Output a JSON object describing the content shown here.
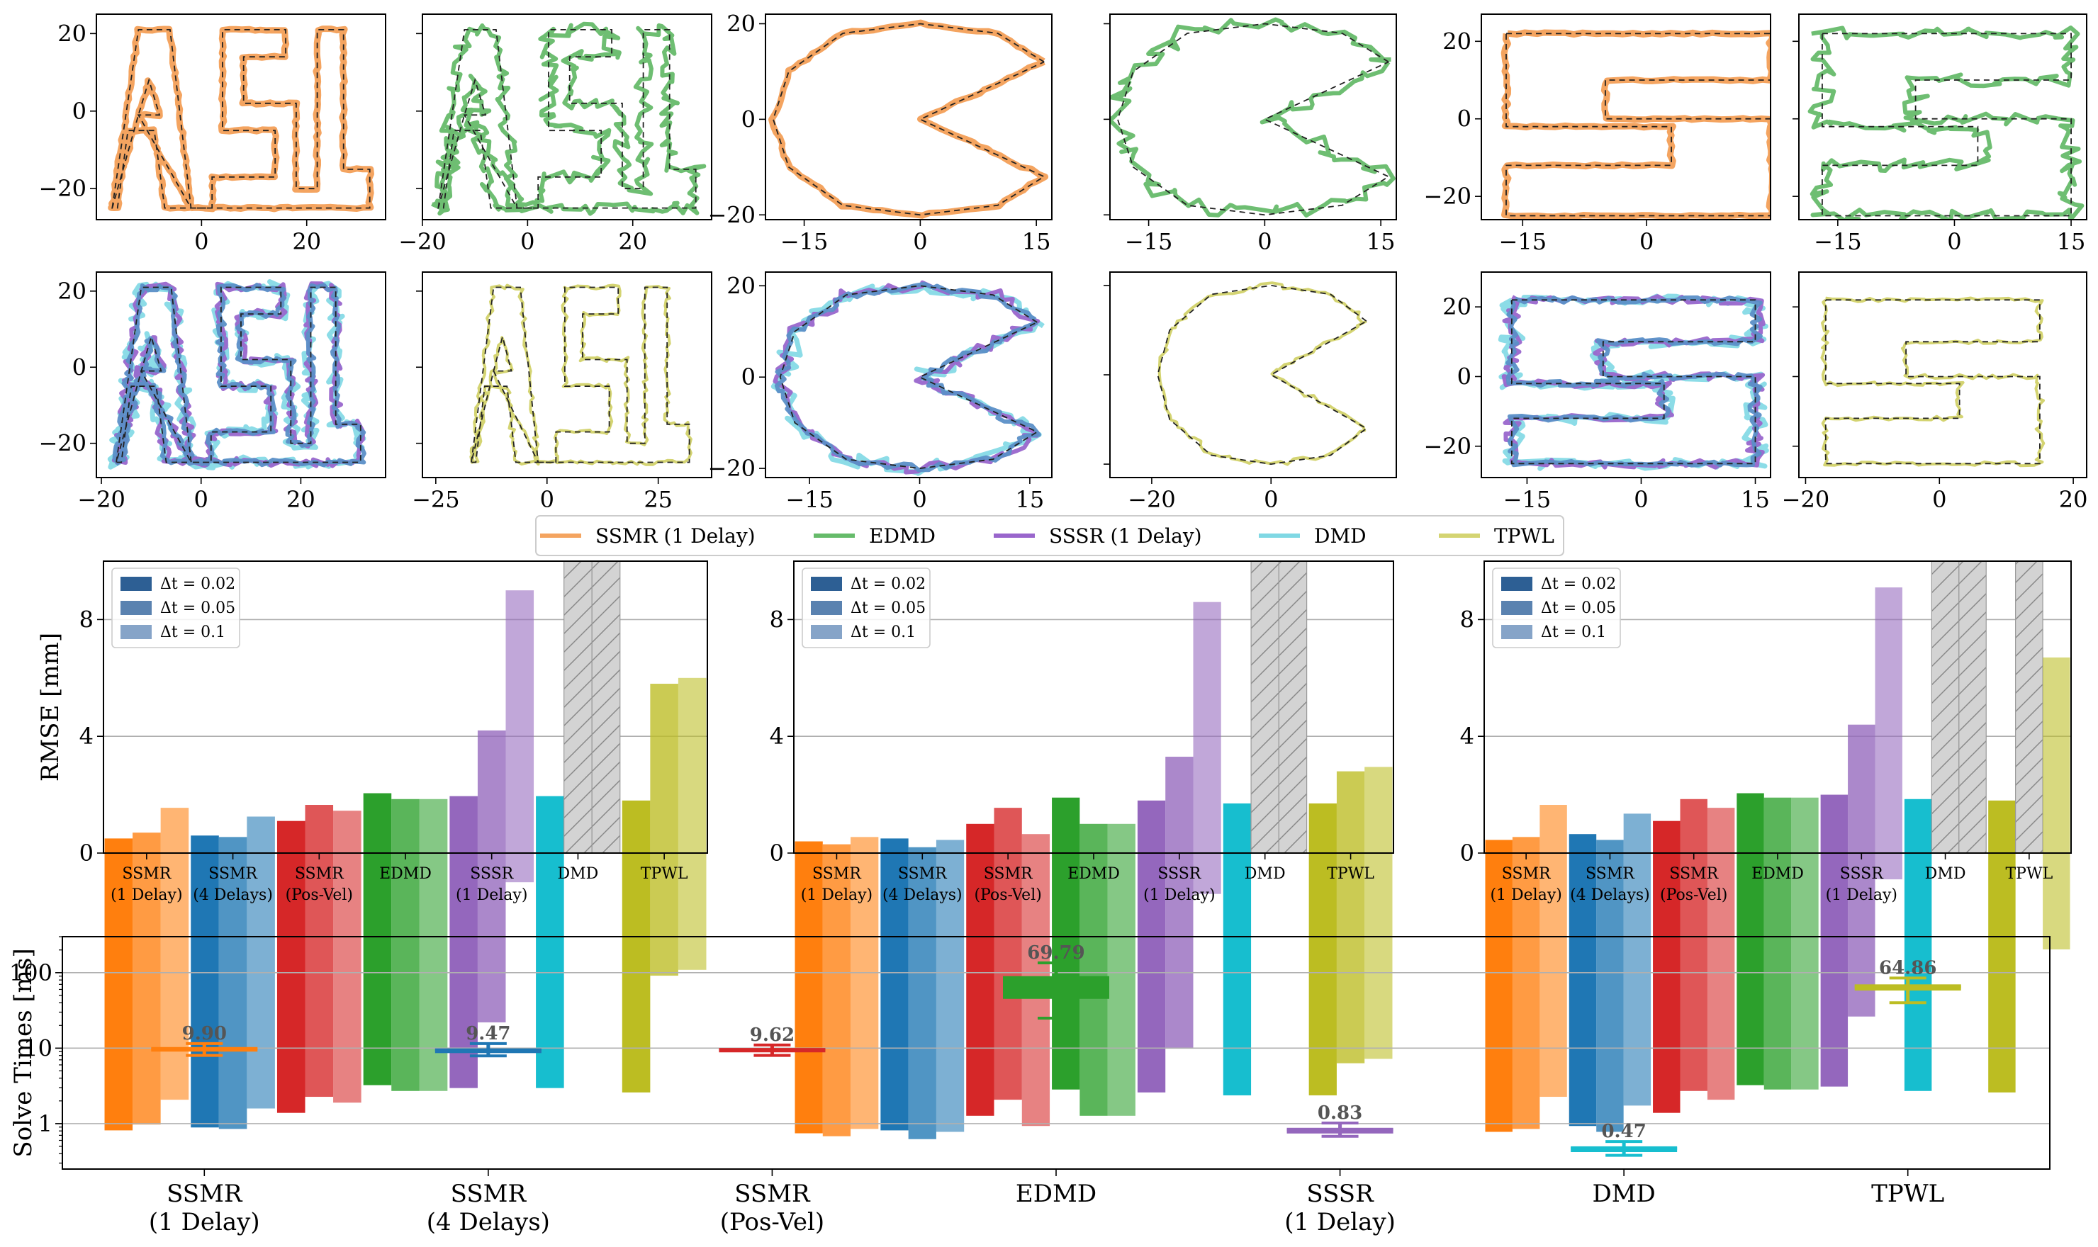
{
  "colors": {
    "SSMR (1 Delay)": "#ff7f0e",
    "SSMR (4 Delays)": "#1f77b4",
    "SSMR (Pos-Vel)": "#d62728",
    "EDMD": "#2ca02c",
    "SSSR (1 Delay)": "#9467bd",
    "DMD": "#17becf",
    "TPWL": "#bcbd22",
    "traj_SSMR": "#f4a460",
    "traj_EDMD": "#66bb6a",
    "traj_SSSR": "#9966cc",
    "traj_DMD": "#80d8e4",
    "traj_TPWL": "#d4d472",
    "hatch": "#d3d3d3",
    "grid": "#b0b0b0"
  },
  "trajectory_panels": [
    {
      "shape": "ASL",
      "model": "SSMR",
      "xticks": [
        0,
        20
      ],
      "yticks": [
        -20,
        0,
        20
      ],
      "show_y": true,
      "xlim": [
        -20,
        35
      ],
      "ylim": [
        -28,
        25
      ]
    },
    {
      "shape": "ASL",
      "model": "EDMD",
      "xticks": [
        -20,
        0,
        20
      ],
      "yticks": [
        -20,
        0,
        20
      ],
      "show_y": false,
      "xlim": [
        -20,
        35
      ],
      "ylim": [
        -28,
        25
      ]
    },
    {
      "shape": "C",
      "model": "SSMR",
      "xticks": [
        -15,
        0,
        15
      ],
      "yticks": [
        -20,
        0,
        20
      ],
      "show_y": true,
      "xlim": [
        -20,
        17
      ],
      "ylim": [
        -21,
        22
      ]
    },
    {
      "shape": "C",
      "model": "EDMD",
      "xticks": [
        -15,
        0,
        15
      ],
      "yticks": [
        -20,
        0,
        20
      ],
      "show_y": false,
      "xlim": [
        -20,
        17
      ],
      "ylim": [
        -21,
        22
      ]
    },
    {
      "shape": "S",
      "model": "SSMR",
      "xticks": [
        -15,
        0
      ],
      "yticks": [
        -20,
        0,
        20
      ],
      "show_y": true,
      "xlim": [
        -20,
        15
      ],
      "ylim": [
        -26,
        27
      ]
    },
    {
      "shape": "S",
      "model": "EDMD",
      "xticks": [
        -15,
        0,
        15
      ],
      "yticks": [
        -20,
        0,
        20
      ],
      "show_y": false,
      "xlim": [
        -20,
        17
      ],
      "ylim": [
        -26,
        27
      ]
    },
    {
      "shape": "ASL",
      "model": "SSSR+DMD",
      "xticks": [
        -20,
        0,
        20
      ],
      "yticks": [
        -20,
        0,
        20
      ],
      "show_y": true,
      "xlim": [
        -21,
        37
      ],
      "ylim": [
        -29,
        25
      ]
    },
    {
      "shape": "ASL",
      "model": "TPWL",
      "xticks": [
        -25,
        0,
        25
      ],
      "yticks": [
        -20,
        0,
        20
      ],
      "show_y": false,
      "xlim": [
        -28,
        37
      ],
      "ylim": [
        -29,
        25
      ]
    },
    {
      "shape": "C",
      "model": "SSSR+DMD",
      "xticks": [
        -15,
        0,
        15
      ],
      "yticks": [
        -20,
        0,
        20
      ],
      "show_y": true,
      "xlim": [
        -21,
        18
      ],
      "ylim": [
        -22,
        23
      ]
    },
    {
      "shape": "C",
      "model": "TPWL",
      "xticks": [
        -20,
        0
      ],
      "yticks": [
        -20,
        0,
        20
      ],
      "show_y": false,
      "xlim": [
        -27,
        21
      ],
      "ylim": [
        -23,
        23
      ]
    },
    {
      "shape": "S",
      "model": "SSSR+DMD",
      "xticks": [
        -15,
        0,
        15
      ],
      "yticks": [
        -20,
        0,
        20
      ],
      "show_y": true,
      "xlim": [
        -21,
        17
      ],
      "ylim": [
        -29,
        30
      ]
    },
    {
      "shape": "S",
      "model": "TPWL",
      "xticks": [
        -20,
        0,
        20
      ],
      "yticks": [
        -20,
        0,
        20
      ],
      "show_y": false,
      "xlim": [
        -21,
        22
      ],
      "ylim": [
        -29,
        30
      ]
    }
  ],
  "legend": [
    "SSMR (1 Delay)",
    "EDMD",
    "SSSR (1 Delay)",
    "DMD",
    "TPWL"
  ],
  "rmse_legend": [
    "Δt = 0.02",
    "Δt = 0.05",
    "Δt = 0.1"
  ],
  "chart_data": [
    {
      "type": "bar",
      "ylabel": "RMSE [mm]",
      "ylim": [
        0,
        10
      ],
      "yticks": [
        0,
        4,
        8
      ],
      "grid": true,
      "legend": "top-left",
      "categories": [
        "SSMR\n(1 Delay)",
        "SSMR\n(4 Delays)",
        "SSMR\n(Pos-Vel)",
        "EDMD",
        "SSSR\n(1 Delay)",
        "DMD",
        "TPWL"
      ],
      "series": [
        {
          "name": "Δt = 0.02",
          "values": [
            0.5,
            0.6,
            1.1,
            2.05,
            1.95,
            1.95,
            1.8
          ]
        },
        {
          "name": "Δt = 0.05",
          "values": [
            0.7,
            0.55,
            1.65,
            1.85,
            4.2,
            null,
            5.8
          ]
        },
        {
          "name": "Δt = 0.1",
          "values": [
            1.55,
            1.25,
            1.45,
            1.85,
            9.0,
            null,
            6.0
          ]
        }
      ]
    },
    {
      "type": "bar",
      "ylabel": "",
      "ylim": [
        0,
        10
      ],
      "yticks": [
        0,
        4,
        8
      ],
      "grid": true,
      "legend": "top-left",
      "categories": [
        "SSMR\n(1 Delay)",
        "SSMR\n(4 Delays)",
        "SSMR\n(Pos-Vel)",
        "EDMD",
        "SSSR\n(1 Delay)",
        "DMD",
        "TPWL"
      ],
      "series": [
        {
          "name": "Δt = 0.02",
          "values": [
            0.4,
            0.5,
            1.0,
            1.9,
            1.8,
            1.7,
            1.7
          ]
        },
        {
          "name": "Δt = 0.05",
          "values": [
            0.3,
            0.2,
            1.55,
            1.0,
            3.3,
            null,
            2.8
          ]
        },
        {
          "name": "Δt = 0.1",
          "values": [
            0.55,
            0.45,
            0.65,
            1.0,
            8.6,
            null,
            2.95
          ]
        }
      ]
    },
    {
      "type": "bar",
      "ylabel": "",
      "ylim": [
        0,
        10
      ],
      "yticks": [
        0,
        4,
        8
      ],
      "grid": true,
      "legend": "top-left",
      "categories": [
        "SSMR\n(1 Delay)",
        "SSMR\n(4 Delays)",
        "SSMR\n(Pos-Vel)",
        "EDMD",
        "SSSR\n(1 Delay)",
        "DMD",
        "TPWL"
      ],
      "series": [
        {
          "name": "Δt = 0.02",
          "values": [
            0.45,
            0.65,
            1.1,
            2.05,
            2.0,
            1.85,
            1.8
          ]
        },
        {
          "name": "Δt = 0.05",
          "values": [
            0.55,
            0.45,
            1.85,
            1.9,
            4.4,
            null,
            null
          ]
        },
        {
          "name": "Δt = 0.1",
          "values": [
            1.65,
            1.35,
            1.55,
            1.9,
            9.1,
            null,
            6.7
          ]
        }
      ]
    },
    {
      "type": "box",
      "ylabel": "Solve Times [ms]",
      "yscale": "log",
      "ylim": [
        0.25,
        300
      ],
      "yticks": [
        1,
        10,
        100
      ],
      "grid": true,
      "categories": [
        "SSMR\n(1 Delay)",
        "SSMR\n(4 Delays)",
        "SSMR\n(Pos-Vel)",
        "EDMD",
        "SSSR\n(1 Delay)",
        "DMD",
        "TPWL"
      ],
      "medians": [
        9.9,
        9.47,
        9.62,
        69.79,
        0.83,
        0.47,
        64.86
      ],
      "q1": [
        9.0,
        8.6,
        8.8,
        45,
        0.74,
        0.42,
        58
      ],
      "q3": [
        10.0,
        9.9,
        9.9,
        90,
        0.88,
        0.5,
        70
      ],
      "whisker_low": [
        8.0,
        7.9,
        8.0,
        25,
        0.68,
        0.38,
        40
      ],
      "whisker_high": [
        11.5,
        11.5,
        11.0,
        135,
        1.02,
        0.58,
        85
      ],
      "labels": [
        "9.90",
        "9.47",
        "9.62",
        "69.79",
        "0.83",
        "0.47",
        "64.86"
      ]
    }
  ]
}
